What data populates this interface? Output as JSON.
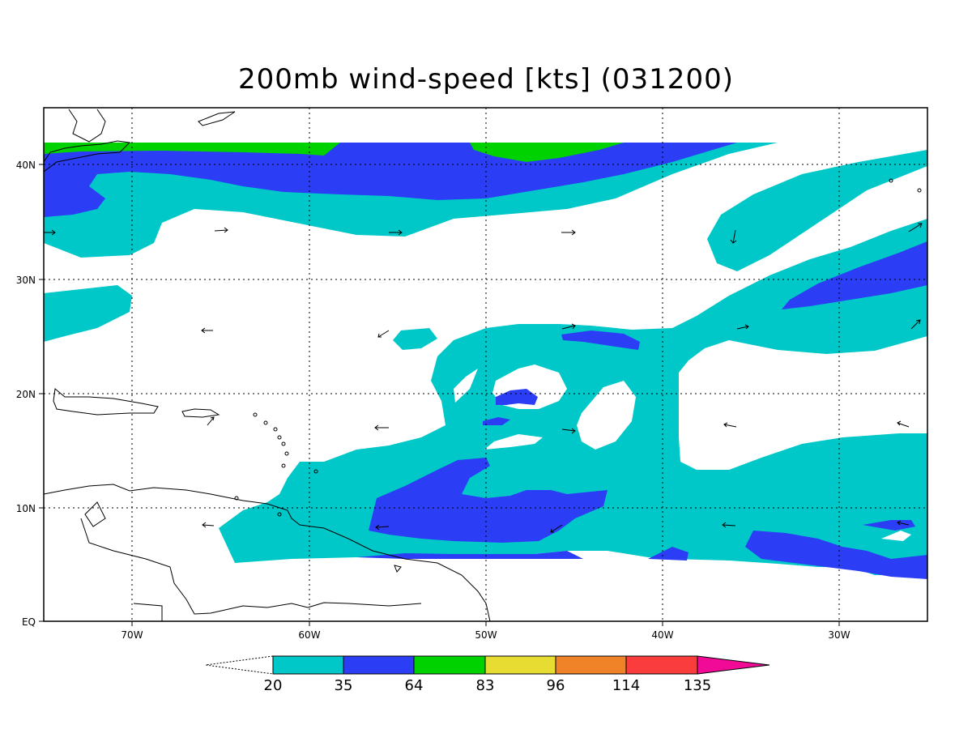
{
  "title": "200mb wind-speed [kts] (031200)",
  "map": {
    "lat_labels": [
      "40N",
      "30N",
      "20N",
      "10N",
      "EQ"
    ],
    "lon_labels": [
      "70W",
      "60W",
      "50W",
      "40W",
      "30W"
    ],
    "grid_lines": "dotted"
  },
  "legend": {
    "ticks": [
      "20",
      "35",
      "64",
      "83",
      "96",
      "114",
      "135"
    ],
    "colors": [
      "#00c8c8",
      "#2b3df5",
      "#00d200",
      "#e6dc32",
      "#f08228",
      "#fa3c3c",
      "#f00a96"
    ],
    "below_min": "white"
  },
  "colors": {
    "light": "#00c8c8",
    "mid": "#2b3df5",
    "strong": "#00d200"
  }
}
